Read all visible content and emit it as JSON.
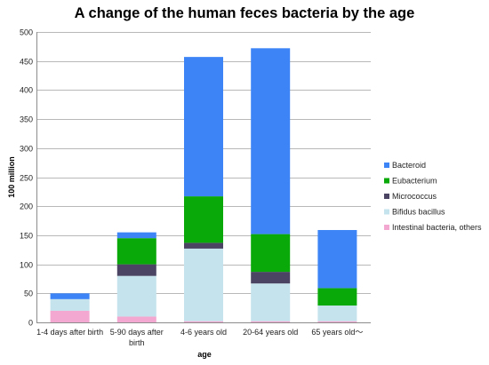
{
  "chart_data": {
    "type": "bar",
    "stacked": true,
    "title": "A change of the human feces bacteria by the age",
    "xlabel": "age",
    "ylabel": "100 million",
    "ylim": [
      0,
      500
    ],
    "y_ticks": [
      "0",
      "50",
      "100",
      "150",
      "200",
      "250",
      "300",
      "350",
      "400",
      "450",
      "500"
    ],
    "grid": true,
    "legend_position": "right",
    "categories": [
      [
        "1-4 days after birth"
      ],
      [
        "5-90 days after",
        "birth"
      ],
      [
        "4-6 years old"
      ],
      [
        "20-64 years old"
      ],
      [
        "65 years old〜"
      ]
    ],
    "series": [
      {
        "name": "Intestinal bacteria, others",
        "color": "#f2a8d0",
        "values": [
          20,
          10,
          2,
          2,
          2
        ]
      },
      {
        "name": "Bifidus bacillus",
        "color": "#c5e3ec",
        "values": [
          20,
          70,
          125,
          65,
          27
        ]
      },
      {
        "name": "Micrococcus",
        "color": "#4b4563",
        "values": [
          0,
          20,
          10,
          20,
          0
        ]
      },
      {
        "name": "Eubacterium",
        "color": "#0aa90a",
        "values": [
          0,
          45,
          80,
          65,
          30
        ]
      },
      {
        "name": "Bacteroid",
        "color": "#3d85f7",
        "values": [
          10,
          10,
          240,
          320,
          100
        ]
      }
    ],
    "legend_order": [
      "Bacteroid",
      "Eubacterium",
      "Micrococcus",
      "Bifidus bacillus",
      "Intestinal bacteria, others"
    ]
  }
}
